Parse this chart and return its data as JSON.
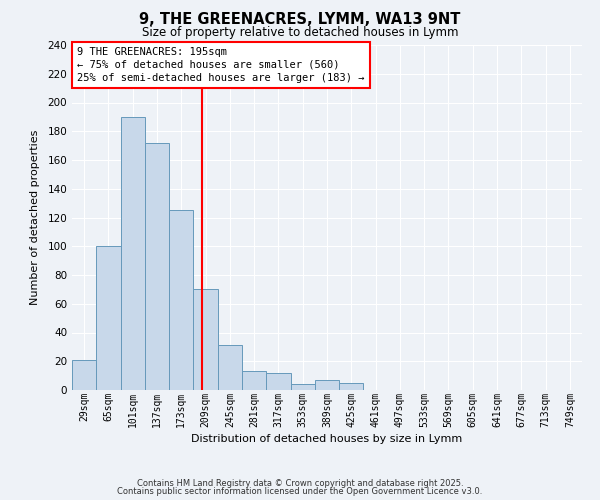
{
  "title": "9, THE GREENACRES, LYMM, WA13 9NT",
  "subtitle": "Size of property relative to detached houses in Lymm",
  "xlabel": "Distribution of detached houses by size in Lymm",
  "ylabel": "Number of detached properties",
  "bar_color": "#c8d8ea",
  "bar_edge_color": "#6699bb",
  "background_color": "#eef2f7",
  "grid_color": "#ffffff",
  "categories": [
    "29sqm",
    "65sqm",
    "101sqm",
    "137sqm",
    "173sqm",
    "209sqm",
    "245sqm",
    "281sqm",
    "317sqm",
    "353sqm",
    "389sqm",
    "425sqm",
    "461sqm",
    "497sqm",
    "533sqm",
    "569sqm",
    "605sqm",
    "641sqm",
    "677sqm",
    "713sqm",
    "749sqm"
  ],
  "values": [
    21,
    100,
    190,
    172,
    125,
    70,
    31,
    13,
    12,
    4,
    7,
    5,
    0,
    0,
    0,
    0,
    0,
    0,
    0,
    0,
    0
  ],
  "ylim": [
    0,
    240
  ],
  "yticks": [
    0,
    20,
    40,
    60,
    80,
    100,
    120,
    140,
    160,
    180,
    200,
    220,
    240
  ],
  "red_line_x": 4.86,
  "annotation_line1": "9 THE GREENACRES: 195sqm",
  "annotation_line2": "← 75% of detached houses are smaller (560)",
  "annotation_line3": "25% of semi-detached houses are larger (183) →",
  "footer1": "Contains HM Land Registry data © Crown copyright and database right 2025.",
  "footer2": "Contains public sector information licensed under the Open Government Licence v3.0."
}
